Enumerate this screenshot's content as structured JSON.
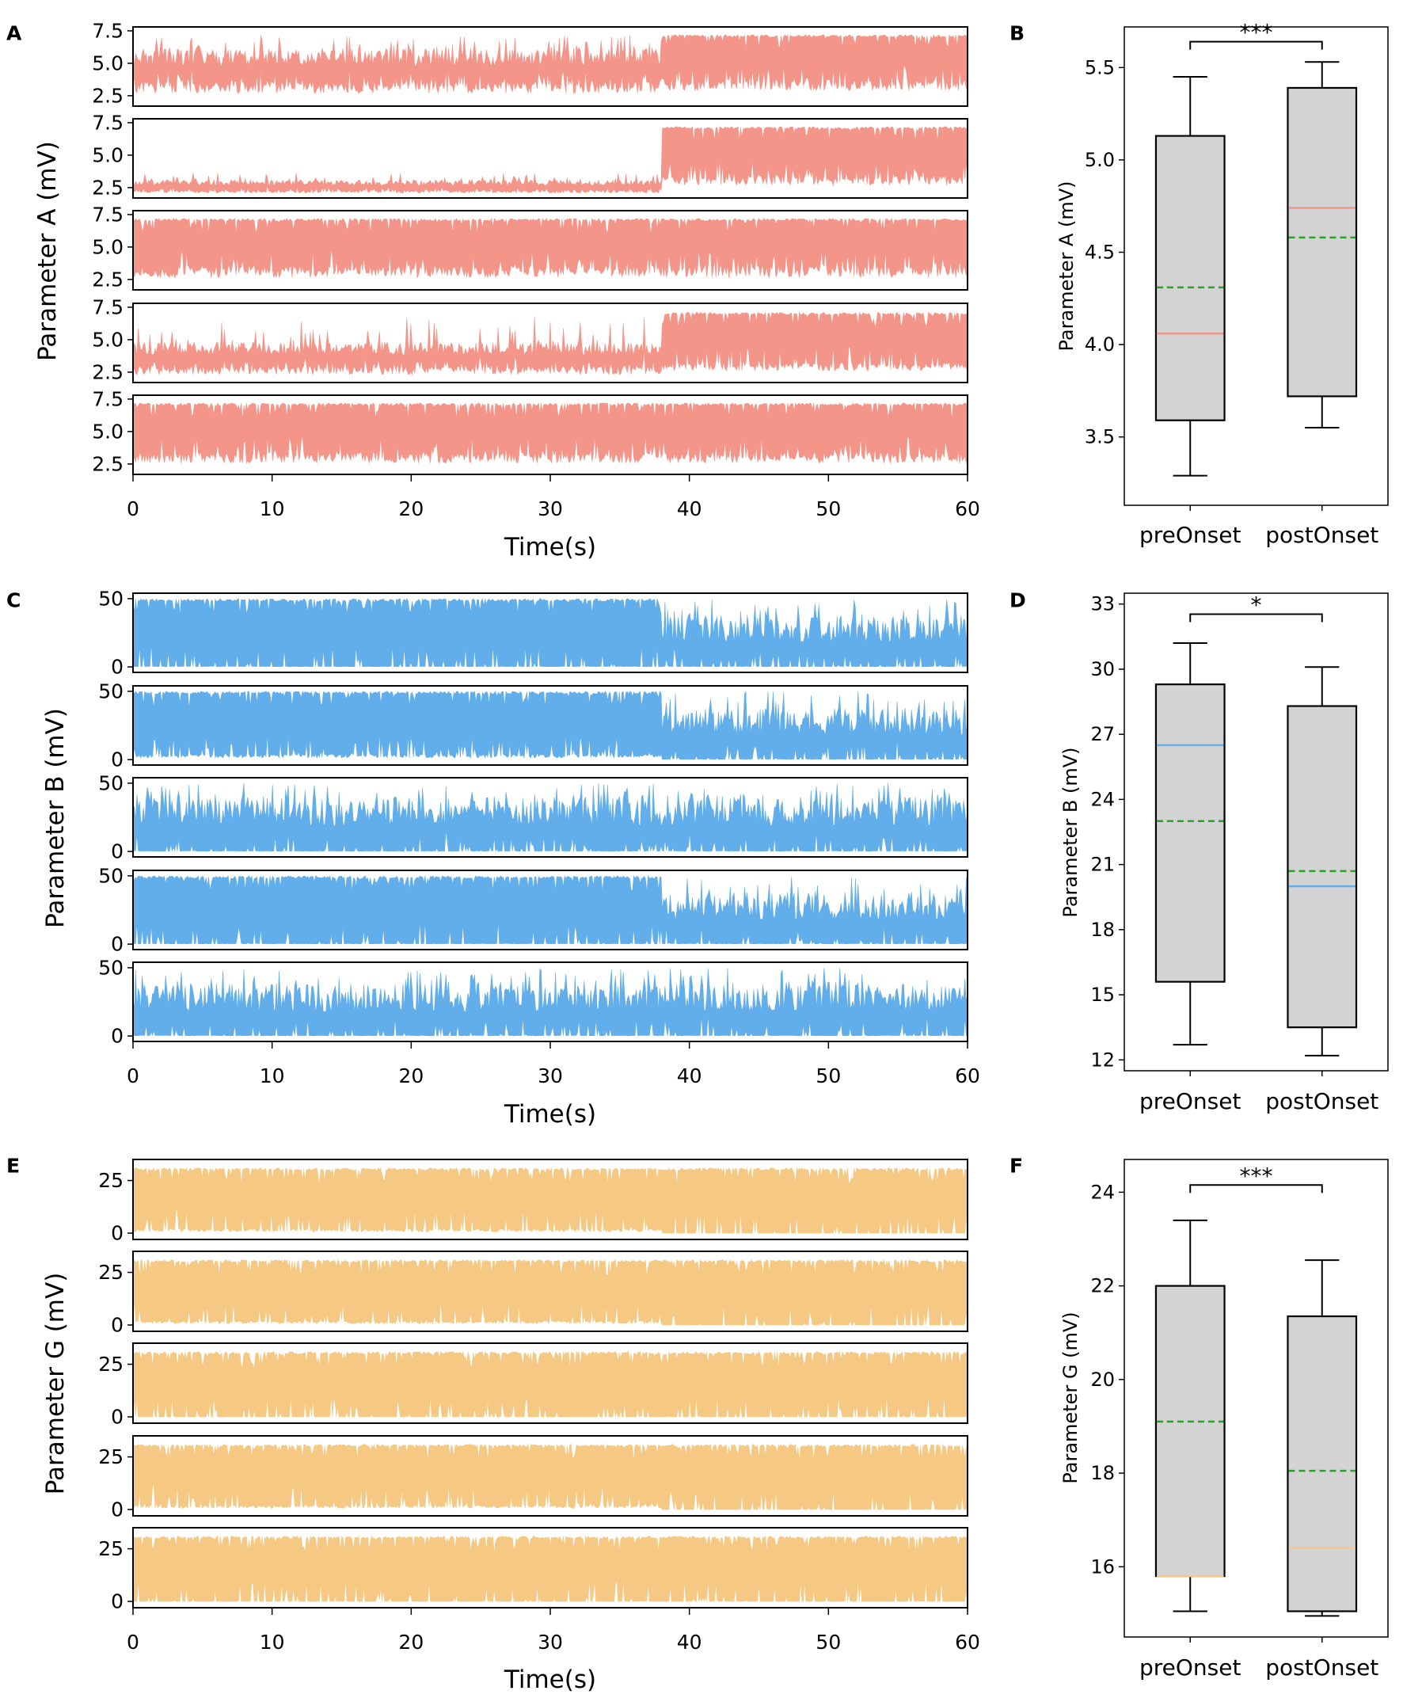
{
  "figure": {
    "panel_labels": [
      "A",
      "B",
      "C",
      "D",
      "E",
      "F"
    ],
    "colors": {
      "A": "#f4958a",
      "B": "#62aeea",
      "G": "#f5c984",
      "box_fill": "#d3d3d3",
      "mean_line": "#2ca02c",
      "frame": "#000000"
    }
  },
  "chart_data": [
    {
      "id": "A",
      "type": "line",
      "panel_label": "A",
      "title": "",
      "ylabel": "Parameter A (mV)",
      "xlabel": "Time(s)",
      "xlim": [
        0,
        60
      ],
      "xticks": [
        "0",
        "10",
        "20",
        "30",
        "40",
        "50",
        "60"
      ],
      "ylim": [
        1.7,
        7.8
      ],
      "yticks": [
        "2.5",
        "5.0",
        "7.5"
      ],
      "color": "#f4958a",
      "traces": [
        {
          "name": "trace 1",
          "segments": [
            {
              "t_start": 0,
              "t_end": 38,
              "low": 2.3,
              "high": 7.2,
              "base": 3.6,
              "typical_peak": 6.2
            },
            {
              "t_start": 38,
              "t_end": 60,
              "low": 2.5,
              "high": 7.2,
              "base": 3.8,
              "typical_peak": 7.2
            }
          ]
        },
        {
          "name": "trace 2",
          "segments": [
            {
              "t_start": 0,
              "t_end": 38,
              "low": 2.0,
              "high": 3.7,
              "base": 2.3,
              "typical_peak": 3.1
            },
            {
              "t_start": 38,
              "t_end": 60,
              "low": 2.3,
              "high": 7.2,
              "base": 3.5,
              "typical_peak": 7.2
            }
          ]
        },
        {
          "name": "trace 3",
          "segments": [
            {
              "t_start": 0,
              "t_end": 60,
              "low": 2.2,
              "high": 7.2,
              "base": 3.6,
              "typical_peak": 7.2
            }
          ]
        },
        {
          "name": "trace 4",
          "segments": [
            {
              "t_start": 0,
              "t_end": 38,
              "low": 2.0,
              "high": 6.8,
              "base": 3.0,
              "typical_peak": 4.8
            },
            {
              "t_start": 38,
              "t_end": 60,
              "low": 2.3,
              "high": 7.1,
              "base": 3.3,
              "typical_peak": 7.1
            }
          ]
        },
        {
          "name": "trace 5",
          "segments": [
            {
              "t_start": 0,
              "t_end": 60,
              "low": 2.2,
              "high": 7.2,
              "base": 3.4,
              "typical_peak": 7.2
            }
          ]
        }
      ]
    },
    {
      "id": "B",
      "type": "box",
      "panel_label": "B",
      "ylabel": "Parameter A (mV)",
      "ylim": [
        3.13,
        5.72
      ],
      "yticks": [
        3.5,
        4.0,
        4.5,
        5.0,
        5.5
      ],
      "ytick_labels": [
        "3.5",
        "4.0",
        "4.5",
        "5.0",
        "5.5"
      ],
      "categories": [
        "preOnset",
        "postOnset"
      ],
      "median_color": "#f4958a",
      "boxes": [
        {
          "category": "preOnset",
          "whisker_low": 3.29,
          "q1": 3.59,
          "median": 4.06,
          "mean": 4.31,
          "q3": 5.13,
          "whisker_high": 5.45
        },
        {
          "category": "postOnset",
          "whisker_low": 3.55,
          "q1": 3.72,
          "median": 4.74,
          "mean": 4.58,
          "q3": 5.39,
          "whisker_high": 5.53
        }
      ],
      "significance": "***"
    },
    {
      "id": "C",
      "type": "line",
      "panel_label": "C",
      "title": "",
      "ylabel": "Parameter B (mV)",
      "xlabel": "Time(s)",
      "xlim": [
        0,
        60
      ],
      "xticks": [
        "0",
        "10",
        "20",
        "30",
        "40",
        "50",
        "60"
      ],
      "ylim": [
        -4,
        54
      ],
      "yticks": [
        "0",
        "50"
      ],
      "color": "#62aeea",
      "traces": [
        {
          "name": "trace 1",
          "segments": [
            {
              "t_start": 0,
              "t_end": 38,
              "low": 0,
              "high": 50,
              "base": 0.5,
              "typical_peak": 50
            },
            {
              "t_start": 38,
              "t_end": 60,
              "low": 0,
              "high": 50,
              "base": 0.5,
              "typical_peak": 38
            }
          ]
        },
        {
          "name": "trace 2",
          "segments": [
            {
              "t_start": 0,
              "t_end": 38,
              "low": 0,
              "high": 50,
              "base": 4,
              "typical_peak": 50
            },
            {
              "t_start": 38,
              "t_end": 60,
              "low": 0,
              "high": 50,
              "base": 0.5,
              "typical_peak": 38
            }
          ]
        },
        {
          "name": "trace 3",
          "segments": [
            {
              "t_start": 0,
              "t_end": 60,
              "low": 0,
              "high": 50,
              "base": 0.5,
              "typical_peak": 40
            }
          ]
        },
        {
          "name": "trace 4",
          "segments": [
            {
              "t_start": 0,
              "t_end": 38,
              "low": 0,
              "high": 50,
              "base": 0.5,
              "typical_peak": 50
            },
            {
              "t_start": 38,
              "t_end": 60,
              "low": 0,
              "high": 50,
              "base": 0.5,
              "typical_peak": 38
            }
          ]
        },
        {
          "name": "trace 5",
          "segments": [
            {
              "t_start": 0,
              "t_end": 60,
              "low": 0,
              "high": 50,
              "base": 0.5,
              "typical_peak": 38
            }
          ]
        }
      ]
    },
    {
      "id": "D",
      "type": "box",
      "panel_label": "D",
      "ylabel": "Parameter B (mV)",
      "ylim": [
        11.5,
        33.5
      ],
      "yticks": [
        12,
        15,
        18,
        21,
        24,
        27,
        30,
        33
      ],
      "ytick_labels": [
        "12",
        "15",
        "18",
        "21",
        "24",
        "27",
        "30",
        "33"
      ],
      "categories": [
        "preOnset",
        "postOnset"
      ],
      "median_color": "#62aeea",
      "boxes": [
        {
          "category": "preOnset",
          "whisker_low": 12.7,
          "q1": 15.6,
          "median": 26.5,
          "mean": 23.0,
          "q3": 29.3,
          "whisker_high": 31.2
        },
        {
          "category": "postOnset",
          "whisker_low": 12.2,
          "q1": 13.5,
          "median": 20.0,
          "mean": 20.7,
          "q3": 28.3,
          "whisker_high": 30.1
        }
      ],
      "significance": "*"
    },
    {
      "id": "E",
      "type": "line",
      "panel_label": "E",
      "title": "",
      "ylabel": "Parameter G (mV)",
      "xlabel": "Time(s)",
      "xlim": [
        0,
        60
      ],
      "xticks": [
        "0",
        "10",
        "20",
        "30",
        "40",
        "50",
        "60"
      ],
      "ylim": [
        -3,
        35
      ],
      "yticks": [
        "0",
        "25"
      ],
      "color": "#f5c984",
      "traces": [
        {
          "name": "trace 1",
          "segments": [
            {
              "t_start": 0,
              "t_end": 38,
              "low": 0,
              "high": 31,
              "base": 2,
              "typical_peak": 31
            },
            {
              "t_start": 38,
              "t_end": 60,
              "low": 0,
              "high": 31,
              "base": 0,
              "typical_peak": 31
            }
          ]
        },
        {
          "name": "trace 2",
          "segments": [
            {
              "t_start": 0,
              "t_end": 38,
              "low": 0,
              "high": 31,
              "base": 2,
              "typical_peak": 31
            },
            {
              "t_start": 38,
              "t_end": 60,
              "low": 0,
              "high": 31,
              "base": 0,
              "typical_peak": 31
            }
          ]
        },
        {
          "name": "trace 3",
          "segments": [
            {
              "t_start": 0,
              "t_end": 60,
              "low": 0,
              "high": 31,
              "base": 0,
              "typical_peak": 31
            }
          ]
        },
        {
          "name": "trace 4",
          "segments": [
            {
              "t_start": 0,
              "t_end": 38,
              "low": 0,
              "high": 31,
              "base": 2,
              "typical_peak": 31
            },
            {
              "t_start": 38,
              "t_end": 60,
              "low": 0,
              "high": 31,
              "base": 0,
              "typical_peak": 31
            }
          ]
        },
        {
          "name": "trace 5",
          "segments": [
            {
              "t_start": 0,
              "t_end": 60,
              "low": 0,
              "high": 31,
              "base": 0,
              "typical_peak": 31
            }
          ]
        }
      ]
    },
    {
      "id": "F",
      "type": "box",
      "panel_label": "F",
      "ylabel": "Parameter G (mV)",
      "ylim": [
        14.5,
        24.7
      ],
      "yticks": [
        16,
        18,
        20,
        22,
        24
      ],
      "ytick_labels": [
        "16",
        "18",
        "20",
        "22",
        "24"
      ],
      "categories": [
        "preOnset",
        "postOnset"
      ],
      "median_color": "#f5c984",
      "boxes": [
        {
          "category": "preOnset",
          "whisker_low": 15.05,
          "q1": 15.8,
          "median": 15.8,
          "mean": 19.1,
          "q3": 22.0,
          "whisker_high": 23.4
        },
        {
          "category": "postOnset",
          "whisker_low": 14.95,
          "q1": 15.05,
          "median": 16.4,
          "mean": 18.05,
          "q3": 21.35,
          "whisker_high": 22.55
        }
      ],
      "significance": "***"
    }
  ]
}
